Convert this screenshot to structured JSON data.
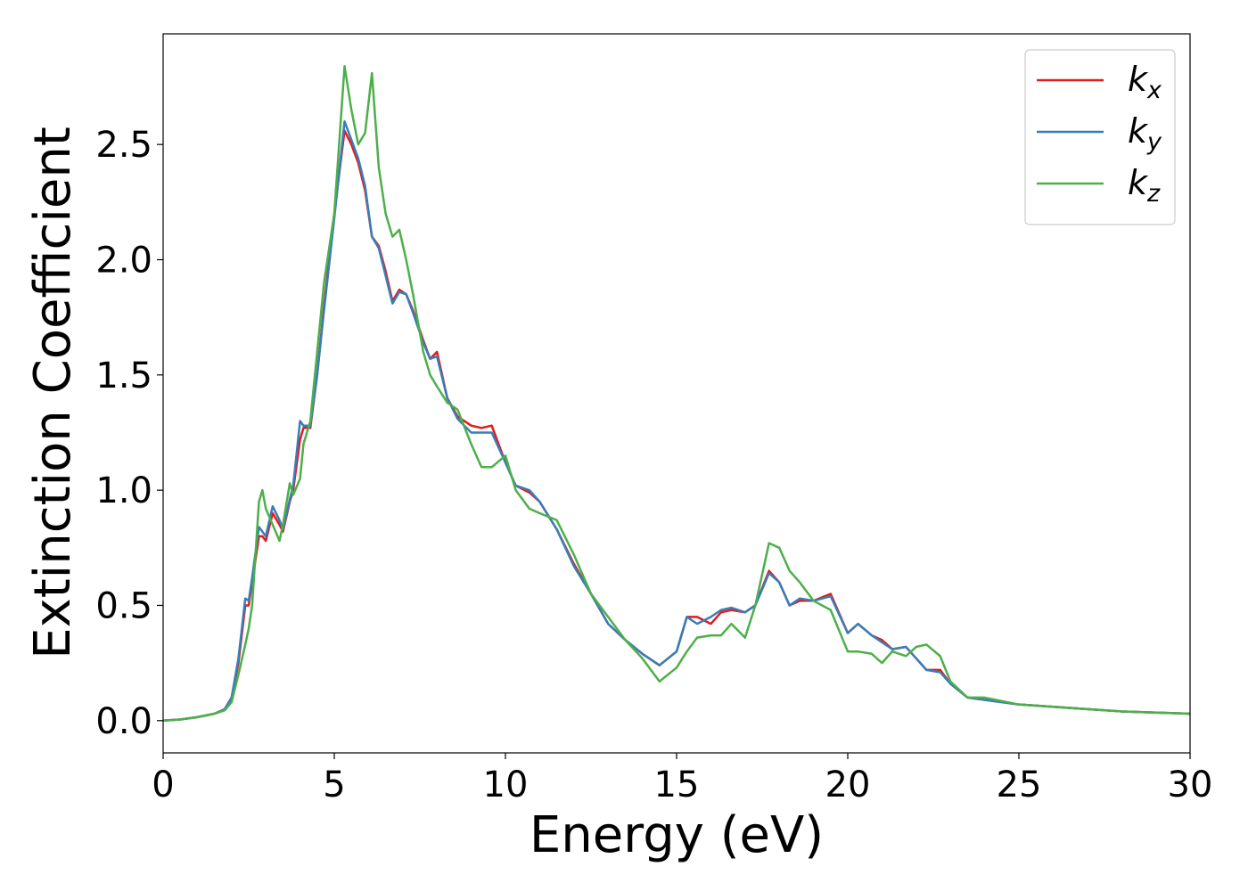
{
  "chart_data": {
    "type": "line",
    "xlabel": "Energy (eV)",
    "ylabel": "Extinction Coefficient",
    "x": [
      0,
      0.5,
      1,
      1.5,
      1.8,
      2,
      2.2,
      2.4,
      2.5,
      2.6,
      2.8,
      2.9,
      3,
      3.2,
      3.4,
      3.5,
      3.7,
      3.8,
      4,
      4.1,
      4.3,
      4.5,
      4.7,
      5,
      5.3,
      5.5,
      5.7,
      5.9,
      6.1,
      6.3,
      6.5,
      6.7,
      6.9,
      7.1,
      7.3,
      7.6,
      7.8,
      8,
      8.3,
      8.6,
      9,
      9.3,
      9.6,
      10,
      10.3,
      10.7,
      11,
      11.5,
      12,
      12.5,
      13,
      13.5,
      14,
      14.5,
      15,
      15.3,
      15.6,
      16,
      16.3,
      16.6,
      17,
      17.3,
      17.7,
      18,
      18.3,
      18.6,
      19,
      19.5,
      20,
      20.3,
      20.7,
      21,
      21.3,
      21.7,
      22,
      22.3,
      22.7,
      23,
      23.5,
      24,
      25,
      26,
      27,
      28,
      29,
      30
    ],
    "series": [
      {
        "name": "kx",
        "color": "#e41a1c",
        "values": [
          0,
          0.005,
          0.015,
          0.03,
          0.05,
          0.1,
          0.25,
          0.5,
          0.5,
          0.6,
          0.8,
          0.8,
          0.78,
          0.9,
          0.85,
          0.82,
          0.95,
          1.0,
          1.22,
          1.27,
          1.27,
          1.5,
          1.8,
          2.2,
          2.56,
          2.5,
          2.42,
          2.3,
          2.1,
          2.06,
          1.95,
          1.82,
          1.87,
          1.85,
          1.78,
          1.65,
          1.57,
          1.6,
          1.4,
          1.32,
          1.28,
          1.27,
          1.28,
          1.12,
          1.02,
          0.99,
          0.95,
          0.83,
          0.68,
          0.55,
          0.42,
          0.35,
          0.29,
          0.24,
          0.3,
          0.45,
          0.45,
          0.42,
          0.47,
          0.48,
          0.47,
          0.5,
          0.65,
          0.6,
          0.5,
          0.52,
          0.52,
          0.55,
          0.38,
          0.42,
          0.37,
          0.35,
          0.31,
          0.32,
          0.27,
          0.22,
          0.22,
          0.16,
          0.1,
          0.09,
          0.07,
          0.06,
          0.05,
          0.04,
          0.035,
          0.03
        ]
      },
      {
        "name": "ky",
        "color": "#377eb8",
        "values": [
          0,
          0.005,
          0.015,
          0.03,
          0.05,
          0.1,
          0.27,
          0.53,
          0.52,
          0.62,
          0.84,
          0.82,
          0.8,
          0.93,
          0.87,
          0.83,
          0.96,
          1.02,
          1.3,
          1.28,
          1.28,
          1.5,
          1.78,
          2.18,
          2.6,
          2.52,
          2.44,
          2.32,
          2.1,
          2.05,
          1.93,
          1.81,
          1.86,
          1.85,
          1.77,
          1.64,
          1.57,
          1.58,
          1.4,
          1.31,
          1.25,
          1.25,
          1.25,
          1.12,
          1.02,
          1.0,
          0.95,
          0.83,
          0.67,
          0.55,
          0.42,
          0.35,
          0.29,
          0.24,
          0.3,
          0.45,
          0.42,
          0.45,
          0.48,
          0.49,
          0.47,
          0.5,
          0.64,
          0.6,
          0.5,
          0.53,
          0.52,
          0.54,
          0.38,
          0.42,
          0.37,
          0.34,
          0.31,
          0.32,
          0.27,
          0.22,
          0.21,
          0.16,
          0.1,
          0.09,
          0.07,
          0.06,
          0.05,
          0.04,
          0.035,
          0.03
        ]
      },
      {
        "name": "kz",
        "color": "#4daf4a",
        "values": [
          0,
          0.005,
          0.015,
          0.03,
          0.045,
          0.08,
          0.2,
          0.33,
          0.4,
          0.5,
          0.95,
          1.0,
          0.92,
          0.85,
          0.78,
          0.85,
          1.03,
          0.98,
          1.05,
          1.2,
          1.3,
          1.6,
          1.9,
          2.2,
          2.84,
          2.65,
          2.5,
          2.55,
          2.81,
          2.4,
          2.2,
          2.1,
          2.13,
          2.0,
          1.85,
          1.6,
          1.5,
          1.45,
          1.38,
          1.35,
          1.2,
          1.1,
          1.1,
          1.15,
          1.0,
          0.92,
          0.9,
          0.87,
          0.72,
          0.55,
          0.45,
          0.35,
          0.27,
          0.17,
          0.23,
          0.3,
          0.36,
          0.37,
          0.37,
          0.42,
          0.36,
          0.5,
          0.77,
          0.75,
          0.65,
          0.6,
          0.52,
          0.48,
          0.3,
          0.3,
          0.29,
          0.25,
          0.3,
          0.28,
          0.32,
          0.33,
          0.28,
          0.17,
          0.1,
          0.1,
          0.07,
          0.06,
          0.05,
          0.04,
          0.035,
          0.03
        ]
      }
    ],
    "xlim": [
      0,
      30
    ],
    "xticks": [
      0,
      5,
      10,
      15,
      20,
      25,
      30
    ],
    "ylim": [
      -0.14,
      2.98
    ],
    "yticks": [
      {
        "value": 0,
        "label": "0.0"
      },
      0.5,
      {
        "value": 1,
        "label": "1.0"
      },
      1.5,
      {
        "value": 2,
        "label": "2.0"
      },
      2.5
    ],
    "legend": "upper right"
  }
}
